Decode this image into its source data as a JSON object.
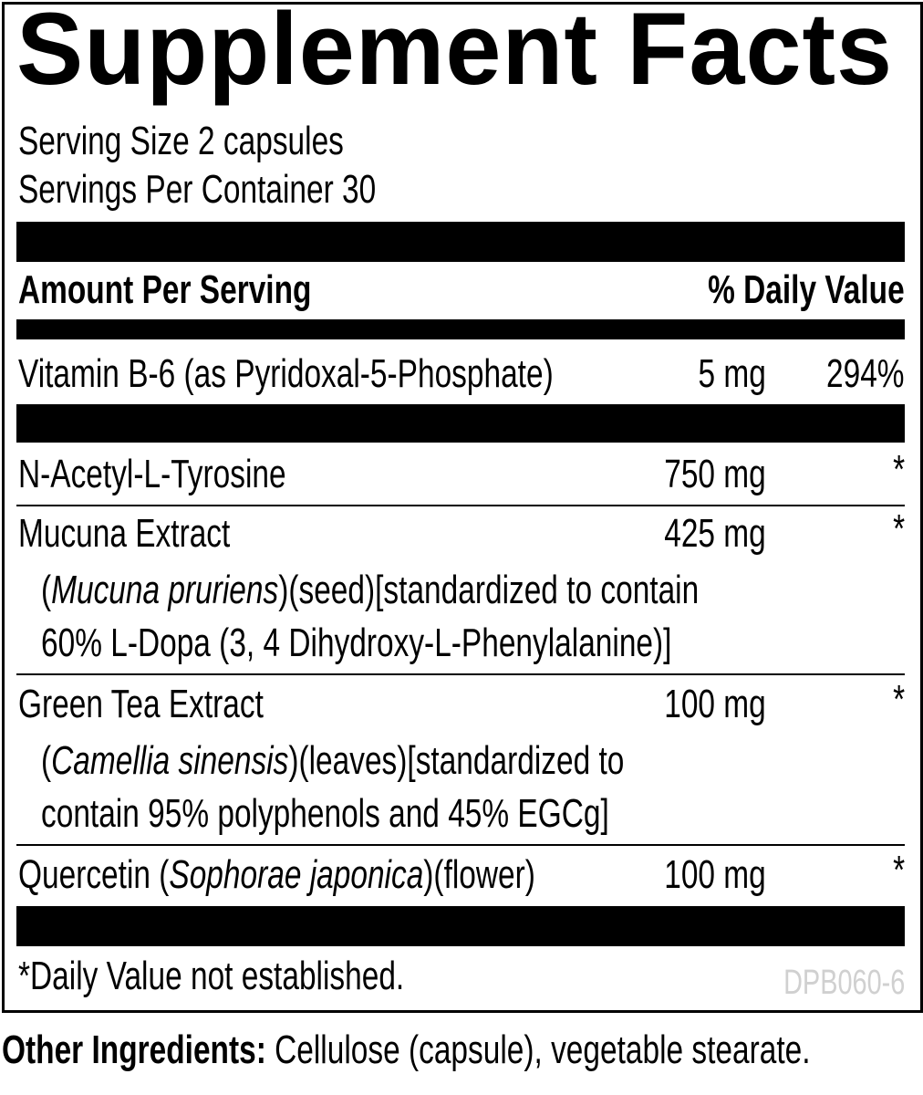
{
  "title": "Supplement Facts",
  "serving_size": "Serving Size 2 capsules",
  "servings_per_container": "Servings Per Container 30",
  "header": {
    "amount": "Amount Per Serving",
    "dv": "% Daily Value"
  },
  "rows": [
    {
      "name": "Vitamin B-6 (as Pyridoxal-5-Phosphate)",
      "amount": "5 mg",
      "dv": "294%"
    },
    {
      "name": "N-Acetyl-L-Tyrosine",
      "amount": "750 mg",
      "dv": "*"
    },
    {
      "name": "Mucuna Extract",
      "amount": "425 mg",
      "dv": "*",
      "detail_open": "(",
      "detail_italic": "Mucuna pruriens",
      "detail_rest": ")(seed)[standardized to contain",
      "detail_line2": "60% L-Dopa (3, 4 Dihydroxy-L-Phenylalanine)]"
    },
    {
      "name": "Green Tea Extract",
      "amount": "100 mg",
      "dv": "*",
      "detail_open": "(",
      "detail_italic": "Camellia sinensis",
      "detail_rest": ")(leaves)[standardized to",
      "detail_line2": "contain 95% polyphenols and 45% EGCg]"
    },
    {
      "name_pre": "Quercetin (",
      "name_italic": "Sophorae japonica",
      "name_post": ")(flower)",
      "amount": "100 mg",
      "dv": "*"
    }
  ],
  "footnote": "*Daily Value not established.",
  "code": "DPB060-6",
  "other_ingredients": {
    "label": "Other Ingredients:",
    "text": " Cellulose (capsule), vegetable stearate."
  }
}
